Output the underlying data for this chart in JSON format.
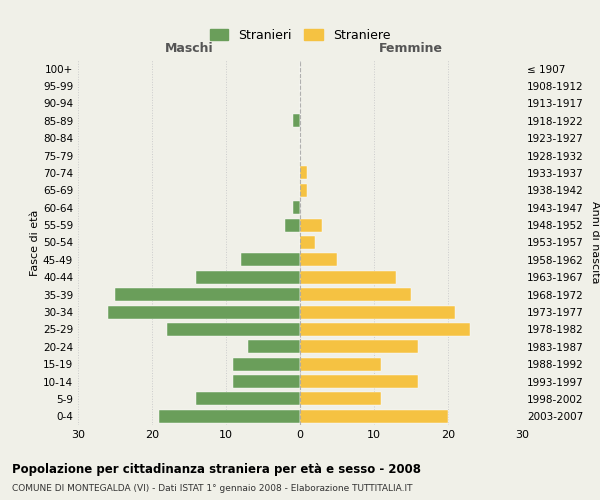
{
  "age_groups": [
    "100+",
    "95-99",
    "90-94",
    "85-89",
    "80-84",
    "75-79",
    "70-74",
    "65-69",
    "60-64",
    "55-59",
    "50-54",
    "45-49",
    "40-44",
    "35-39",
    "30-34",
    "25-29",
    "20-24",
    "15-19",
    "10-14",
    "5-9",
    "0-4"
  ],
  "birth_years": [
    "≤ 1907",
    "1908-1912",
    "1913-1917",
    "1918-1922",
    "1923-1927",
    "1928-1932",
    "1933-1937",
    "1938-1942",
    "1943-1947",
    "1948-1952",
    "1953-1957",
    "1958-1962",
    "1963-1967",
    "1968-1972",
    "1973-1977",
    "1978-1982",
    "1983-1987",
    "1988-1992",
    "1993-1997",
    "1998-2002",
    "2003-2007"
  ],
  "maschi": [
    0,
    0,
    0,
    1,
    0,
    0,
    0,
    0,
    1,
    2,
    0,
    8,
    14,
    25,
    26,
    18,
    7,
    9,
    9,
    14,
    19
  ],
  "femmine": [
    0,
    0,
    0,
    0,
    0,
    0,
    1,
    1,
    0,
    3,
    2,
    5,
    13,
    15,
    21,
    23,
    16,
    11,
    16,
    11,
    20
  ],
  "color_maschi": "#6a9e5a",
  "color_femmine": "#f5c242",
  "background_color": "#f0f0e8",
  "title": "Popolazione per cittadinanza straniera per età e sesso - 2008",
  "subtitle": "COMUNE DI MONTEGALDA (VI) - Dati ISTAT 1° gennaio 2008 - Elaborazione TUTTITALIA.IT",
  "ylabel_left": "Fasce di età",
  "ylabel_right": "Anni di nascita",
  "xlabel_maschi": "Maschi",
  "xlabel_femmine": "Femmine",
  "legend_maschi": "Stranieri",
  "legend_femmine": "Straniere",
  "xlim": 30
}
